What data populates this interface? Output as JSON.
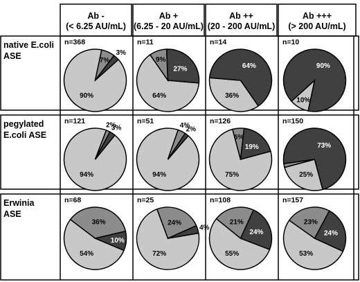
{
  "chart_data": {
    "type": "pie",
    "columns": [
      {
        "title": "Ab -",
        "subtitle": "(< 6.25 AU/mL)"
      },
      {
        "title": "Ab +",
        "subtitle": "(6.25 - 20 AU/mL)"
      },
      {
        "title": "Ab ++",
        "subtitle": "(20 - 200 AU/mL)"
      },
      {
        "title": "Ab +++",
        "subtitle": "(> 200 AU/mL)"
      }
    ],
    "rows": [
      {
        "label_lines": [
          "native E.coli",
          "ASE"
        ],
        "cells": [
          {
            "n_label": "n=368",
            "slices": [
              {
                "value": 90,
                "label": "90%",
                "color": "#c8c8c8"
              },
              {
                "value": 7,
                "label": "7%",
                "color": "#8c8c8c"
              },
              {
                "value": 3,
                "label": "3%",
                "color": "#404040"
              }
            ]
          },
          {
            "n_label": "n=11",
            "slices": [
              {
                "value": 64,
                "label": "64%",
                "color": "#c8c8c8"
              },
              {
                "value": 9,
                "label": "9%",
                "color": "#8c8c8c"
              },
              {
                "value": 27,
                "label": "27%",
                "color": "#404040"
              }
            ]
          },
          {
            "n_label": "n=14",
            "slices": [
              {
                "value": 36,
                "label": "36%",
                "color": "#c8c8c8"
              },
              {
                "value": 64,
                "label": "64%",
                "color": "#404040"
              }
            ]
          },
          {
            "n_label": "n=10",
            "slices": [
              {
                "value": 10,
                "label": "10%",
                "color": "#c8c8c8"
              },
              {
                "value": 90,
                "label": "90%",
                "color": "#404040"
              }
            ]
          }
        ]
      },
      {
        "label_lines": [
          "pegylated",
          "E.coli ASE"
        ],
        "cells": [
          {
            "n_label": "n=121",
            "slices": [
              {
                "value": 94,
                "label": "94%",
                "color": "#c8c8c8"
              },
              {
                "value": 2,
                "label": "2%",
                "color": "#8c8c8c"
              },
              {
                "value": 3,
                "label": "3%",
                "color": "#404040"
              }
            ]
          },
          {
            "n_label": "n=51",
            "slices": [
              {
                "value": 94,
                "label": "94%",
                "color": "#c8c8c8"
              },
              {
                "value": 4,
                "label": "4%",
                "color": "#8c8c8c"
              },
              {
                "value": 2,
                "label": "2%",
                "color": "#404040"
              }
            ]
          },
          {
            "n_label": "n=126",
            "slices": [
              {
                "value": 75,
                "label": "75%",
                "color": "#c8c8c8"
              },
              {
                "value": 6,
                "label": "6%",
                "color": "#8c8c8c"
              },
              {
                "value": 19,
                "label": "19%",
                "color": "#404040"
              }
            ]
          },
          {
            "n_label": "n=150",
            "slices": [
              {
                "value": 25,
                "label": "25%",
                "color": "#c8c8c8"
              },
              {
                "value": 2,
                "label": "",
                "color": "#8c8c8c"
              },
              {
                "value": 73,
                "label": "73%",
                "color": "#404040"
              }
            ]
          }
        ]
      },
      {
        "label_lines": [
          "Erwinia",
          "ASE"
        ],
        "cells": [
          {
            "n_label": "n=68",
            "slices": [
              {
                "value": 54,
                "label": "54%",
                "color": "#c8c8c8"
              },
              {
                "value": 36,
                "label": "36%",
                "color": "#8c8c8c"
              },
              {
                "value": 10,
                "label": "10%",
                "color": "#404040"
              }
            ]
          },
          {
            "n_label": "n=25",
            "slices": [
              {
                "value": 72,
                "label": "72%",
                "color": "#c8c8c8"
              },
              {
                "value": 24,
                "label": "24%",
                "color": "#8c8c8c"
              },
              {
                "value": 4,
                "label": "4%",
                "color": "#404040"
              }
            ]
          },
          {
            "n_label": "n=108",
            "slices": [
              {
                "value": 55,
                "label": "55%",
                "color": "#c8c8c8"
              },
              {
                "value": 21,
                "label": "21%",
                "color": "#8c8c8c"
              },
              {
                "value": 24,
                "label": "24%",
                "color": "#404040"
              }
            ]
          },
          {
            "n_label": "n=157",
            "slices": [
              {
                "value": 53,
                "label": "53%",
                "color": "#c8c8c8"
              },
              {
                "value": 23,
                "label": "23%",
                "color": "#8c8c8c"
              },
              {
                "value": 24,
                "label": "24%",
                "color": "#404040"
              }
            ]
          }
        ]
      }
    ]
  }
}
